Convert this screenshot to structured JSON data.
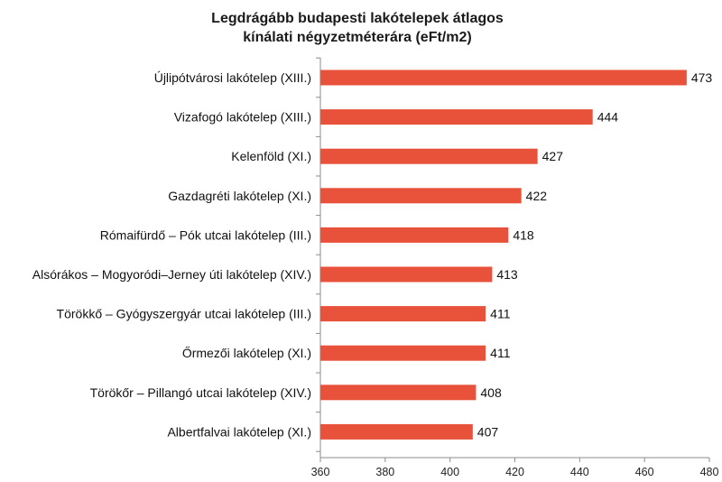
{
  "chart_data": {
    "type": "bar",
    "orientation": "horizontal",
    "title": [
      "Legdrágább budapesti lakótelepek átlagos",
      "kínálati négyzetméterára (eFt/m2)"
    ],
    "categories": [
      "Újlipótvárosi lakótelep (XIII.)",
      "Vizafogó lakótelep (XIII.)",
      "Kelenföld (XI.)",
      "Gazdagréti lakótelep (XI.)",
      "Rómaifürdő – Pók utcai lakótelep (III.)",
      "Alsórákos – Mogyoródi–Jerney úti lakótelep (XIV.)",
      "Törökkő – Gyógyszergyár utcai lakótelep (III.)",
      "Őrmezői lakótelep (XI.)",
      "Törökőr – Pillangó utcai lakótelep (XIV.)",
      "Albertfalvai lakótelep (XI.)"
    ],
    "values": [
      473,
      444,
      427,
      422,
      418,
      413,
      411,
      411,
      408,
      407
    ],
    "xlim": [
      360,
      480
    ],
    "x_ticks": [
      "360",
      "380",
      "400",
      "420",
      "440",
      "460",
      "480"
    ],
    "grid": false,
    "bar_color": "#e8523a"
  }
}
